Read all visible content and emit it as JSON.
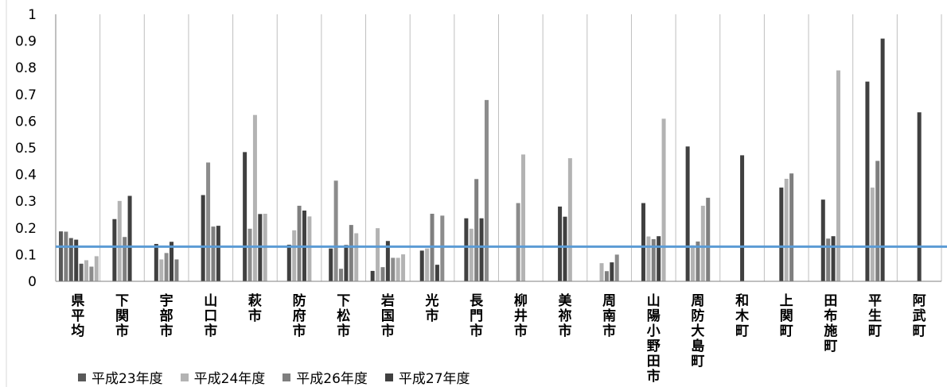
{
  "chart_data": {
    "type": "bar",
    "title": "",
    "xlabel": "",
    "ylabel": "",
    "ylim": [
      0,
      1
    ],
    "yticks": [
      "0",
      "0.1",
      "0.2",
      "0.3",
      "0.4",
      "0.5",
      "0.6",
      "0.7",
      "0.8",
      "0.9",
      "1"
    ],
    "grid": "vertical",
    "legend_position": "bottom",
    "categories": [
      "県平均",
      "下関市",
      "宇部市",
      "山口市",
      "萩市",
      "防府市",
      "下松市",
      "岩国市",
      "光市",
      "長門市",
      "柳井市",
      "美祢市",
      "周南市",
      "山陽小野田市",
      "周防大島町",
      "和木町",
      "上関町",
      "田布施町",
      "平生町",
      "阿武町"
    ],
    "bar_values": [
      [
        0.187,
        0.186,
        0.162,
        0.156,
        0.066,
        0.079,
        0.055,
        0.094
      ],
      [
        0.233,
        0.301,
        0.166,
        0.32
      ],
      [
        0.14,
        0.082,
        0.106,
        0.148,
        0.082
      ],
      [
        0.323,
        0.445,
        0.205,
        0.208
      ],
      [
        0.484,
        0.197,
        0.623,
        0.252,
        0.253
      ],
      [
        0.137,
        0.191,
        0.283,
        0.265,
        0.243
      ],
      [
        0.123,
        0.377,
        0.047,
        0.136,
        0.211,
        0.18
      ],
      [
        0.039,
        0.199,
        0.053,
        0.151,
        0.088,
        0.088,
        0.101
      ],
      [
        0.115,
        0.123,
        0.253,
        0.062,
        0.246
      ],
      [
        0.236,
        0.197,
        0.383,
        0.236,
        0.679
      ],
      [
        0.293,
        0.475
      ],
      [
        0.28,
        0.242,
        0.461
      ],
      [
        0.068,
        0.038,
        0.071,
        0.1
      ],
      [
        0.293,
        0.168,
        0.158,
        0.169,
        0.609
      ],
      [
        0.505,
        0.135,
        0.149,
        0.283,
        0.313
      ],
      [
        0.472
      ],
      [
        0.351,
        0.384,
        0.404
      ],
      [
        0.306,
        0.16,
        0.169,
        0.79
      ],
      [
        0.748,
        0.351,
        0.451,
        0.909
      ],
      [
        0.633
      ]
    ],
    "bar_colors": [
      [
        "#595959",
        "#7f7f7f",
        "#595959",
        "#404040",
        "#595959",
        "#b3b3b3",
        "#8c8c8c",
        "#b3b3b3"
      ],
      [
        "#404040",
        "#b3b3b3",
        "#7f7f7f",
        "#404040"
      ],
      [
        "#404040",
        "#b3b3b3",
        "#8c8c8c",
        "#404040",
        "#7f7f7f"
      ],
      [
        "#404040",
        "#8c8c8c",
        "#7f7f7f",
        "#404040"
      ],
      [
        "#404040",
        "#8c8c8c",
        "#b3b3b3",
        "#404040",
        "#b3b3b3"
      ],
      [
        "#404040",
        "#b3b3b3",
        "#7f7f7f",
        "#404040",
        "#b3b3b3"
      ],
      [
        "#404040",
        "#8c8c8c",
        "#7f7f7f",
        "#404040",
        "#7f7f7f",
        "#b3b3b3"
      ],
      [
        "#404040",
        "#b3b3b3",
        "#7f7f7f",
        "#404040",
        "#8c8c8c",
        "#b3b3b3",
        "#b3b3b3"
      ],
      [
        "#404040",
        "#b3b3b3",
        "#7f7f7f",
        "#404040",
        "#8c8c8c"
      ],
      [
        "#404040",
        "#b3b3b3",
        "#7f7f7f",
        "#404040",
        "#8c8c8c"
      ],
      [
        "#8c8c8c",
        "#b3b3b3"
      ],
      [
        "#404040",
        "#404040",
        "#b3b3b3"
      ],
      [
        "#b3b3b3",
        "#7f7f7f",
        "#404040",
        "#8c8c8c"
      ],
      [
        "#404040",
        "#b3b3b3",
        "#7f7f7f",
        "#404040",
        "#b3b3b3"
      ],
      [
        "#404040",
        "#b3b3b3",
        "#7f7f7f",
        "#b3b3b3",
        "#7f7f7f"
      ],
      [
        "#404040"
      ],
      [
        "#404040",
        "#b3b3b3",
        "#7f7f7f"
      ],
      [
        "#404040",
        "#7f7f7f",
        "#404040",
        "#b3b3b3"
      ],
      [
        "#404040",
        "#b3b3b3",
        "#7f7f7f",
        "#404040"
      ],
      [
        "#404040"
      ]
    ],
    "reference_line": {
      "value": 0.13,
      "color": "#5b9bd5"
    },
    "series": [
      {
        "name": "平成23年度",
        "color": "#595959"
      },
      {
        "name": "平成24年度",
        "color": "#b3b3b3"
      },
      {
        "name": "平成26年度",
        "color": "#7f7f7f"
      },
      {
        "name": "平成27年度",
        "color": "#404040"
      }
    ]
  }
}
